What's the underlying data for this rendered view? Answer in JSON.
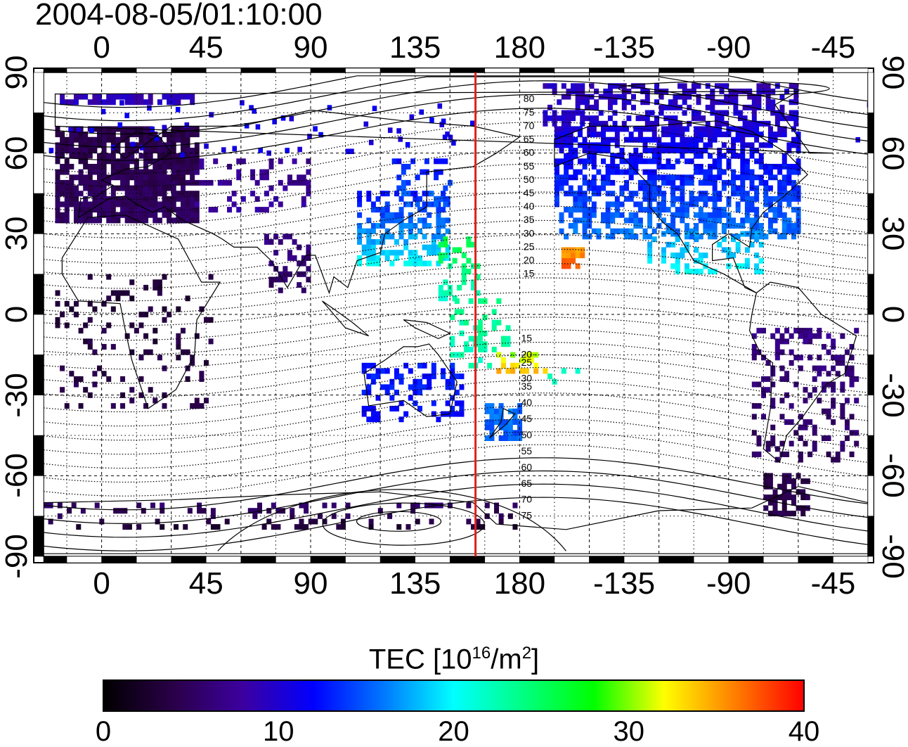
{
  "title": "2004-08-05/01:10:00",
  "map": {
    "top_lon_labels": [
      "0",
      "45",
      "90",
      "135",
      "180",
      "-135",
      "-90",
      "-45"
    ],
    "bottom_lon_labels": [
      "0",
      "45",
      "90",
      "135",
      "180",
      "-135",
      "-90",
      "-45"
    ],
    "left_lat_labels": [
      "90",
      "60",
      "30",
      "0",
      "-30",
      "-60",
      "-90"
    ],
    "right_lat_labels": [
      "90",
      "60",
      "30",
      "0",
      "-30",
      "-60",
      "-90"
    ],
    "lon_range": [
      -25,
      330
    ],
    "lat_range": [
      -90,
      90
    ],
    "grid": "dotted, 15 degree spacing; dashed at 30 degree spacing",
    "meridian_marker": {
      "lon": 161,
      "color": "#e0201a"
    },
    "contour_labels_north": [
      "80",
      "75",
      "70",
      "65",
      "60",
      "55",
      "50",
      "45",
      "40",
      "35",
      "30",
      "25",
      "20",
      "15"
    ],
    "contour_labels_south": [
      "15",
      "20",
      "25",
      "30",
      "35",
      "40",
      "45",
      "50",
      "55",
      "60",
      "65",
      "70",
      "75"
    ]
  },
  "colorbar": {
    "label_prefix": "TEC  [10",
    "label_sup1": "16",
    "label_mid": "/m",
    "label_sup2": "2",
    "label_suffix": "]",
    "ticks": [
      "0",
      "10",
      "20",
      "30",
      "40"
    ],
    "range": [
      0,
      40
    ],
    "colors": [
      "#000000",
      "#2a0048",
      "#3c00a0",
      "#0000ff",
      "#0078ff",
      "#00ffff",
      "#00ff80",
      "#00ff00",
      "#ffff00",
      "#ff8000",
      "#ff0000"
    ]
  }
}
